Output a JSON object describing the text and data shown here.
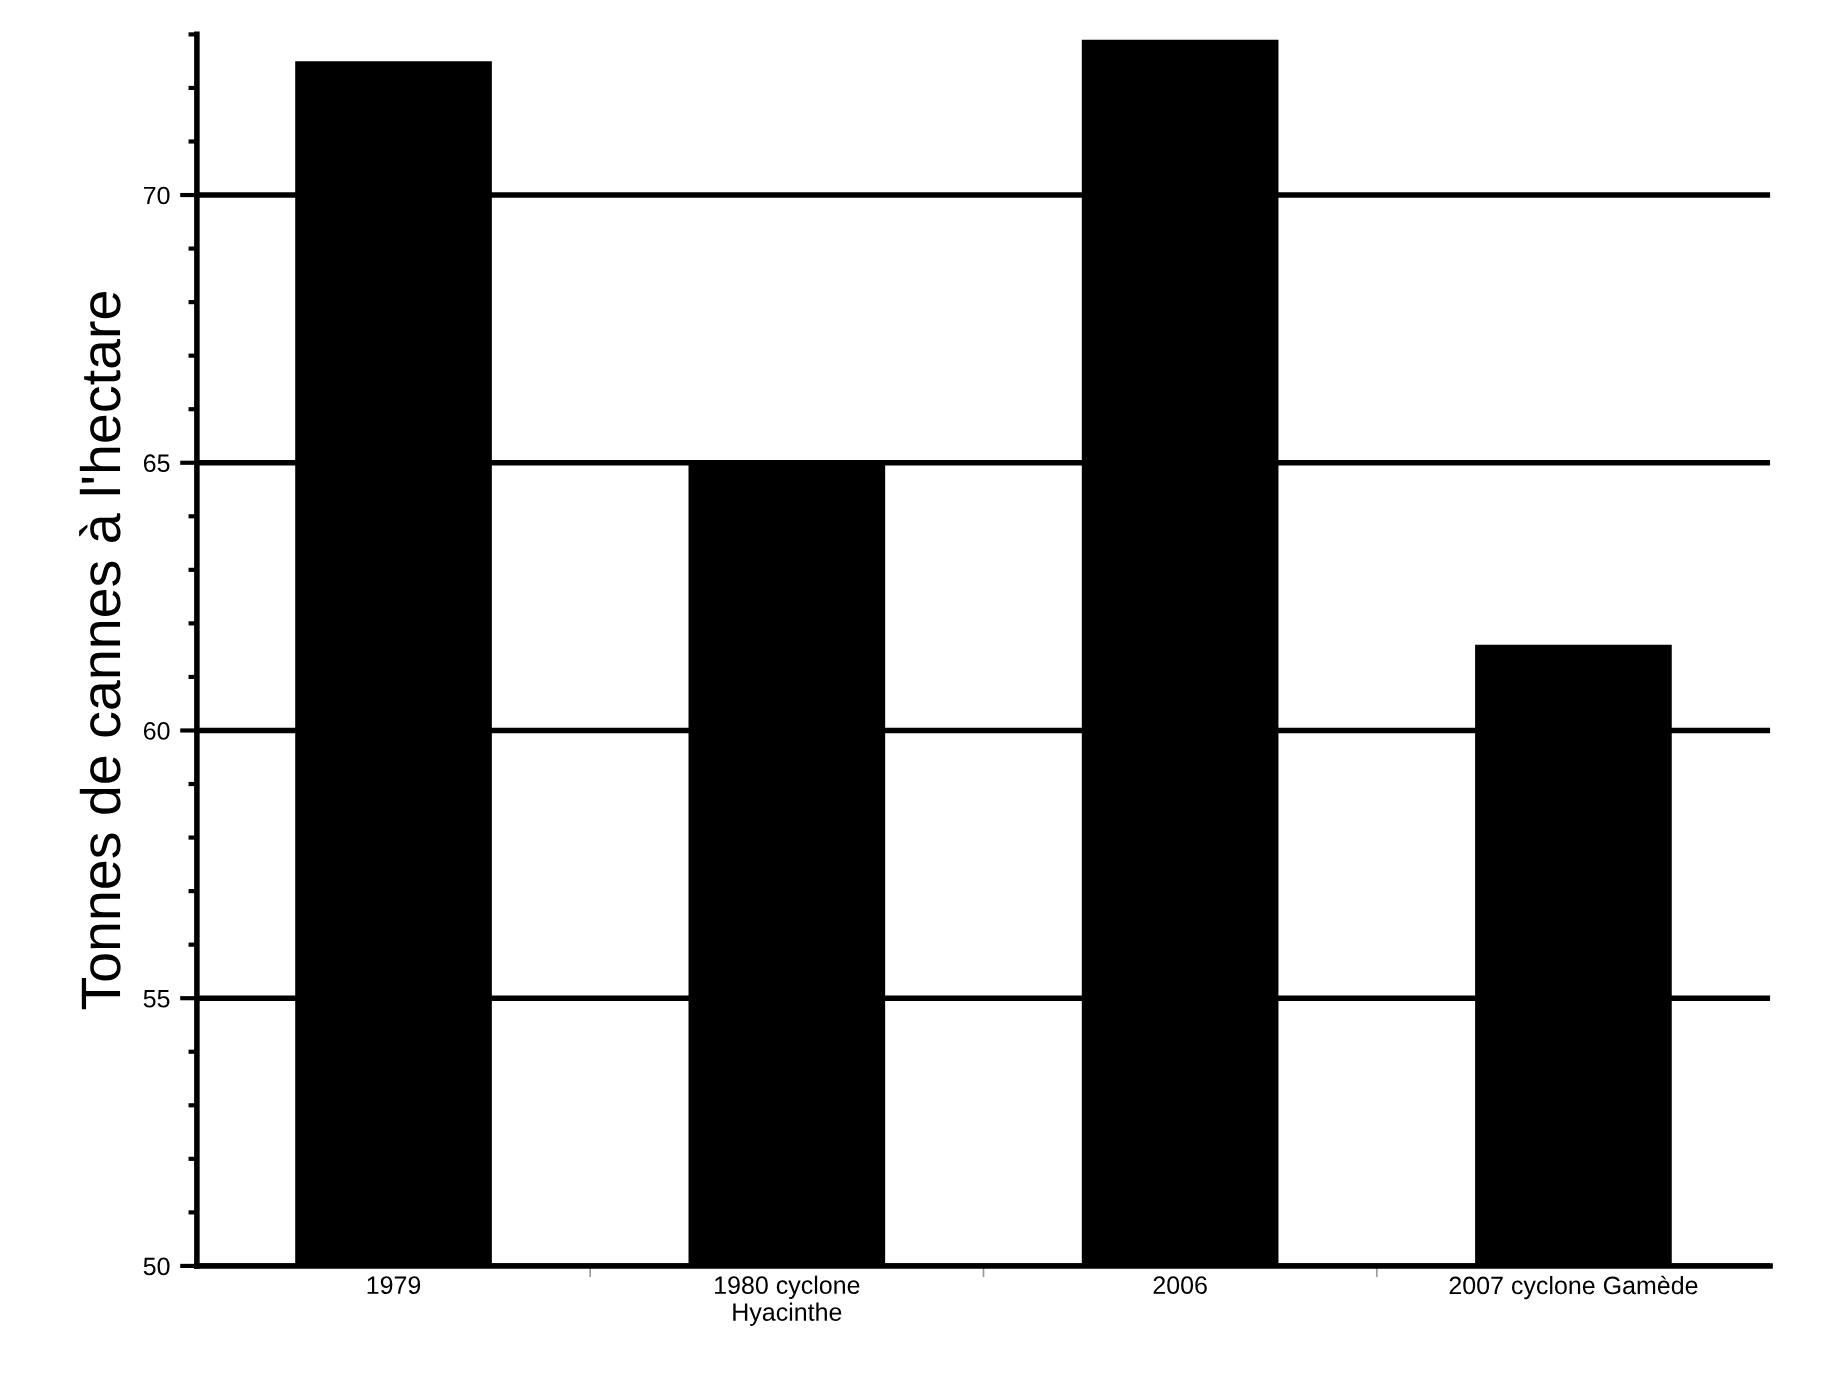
{
  "chart_data": {
    "type": "bar",
    "ylabel": "Tonnes de cannes à l'hectare",
    "categories": [
      "1979",
      "1980 cyclone\nHyacinthe",
      "2006",
      "2007 cyclone Gamède"
    ],
    "values": [
      72.5,
      65.0,
      72.9,
      61.6
    ],
    "color": "#000000",
    "ylim": [
      50,
      73
    ],
    "yticks": [
      50,
      55,
      60,
      65,
      70
    ],
    "grid": "y",
    "legend": false
  }
}
